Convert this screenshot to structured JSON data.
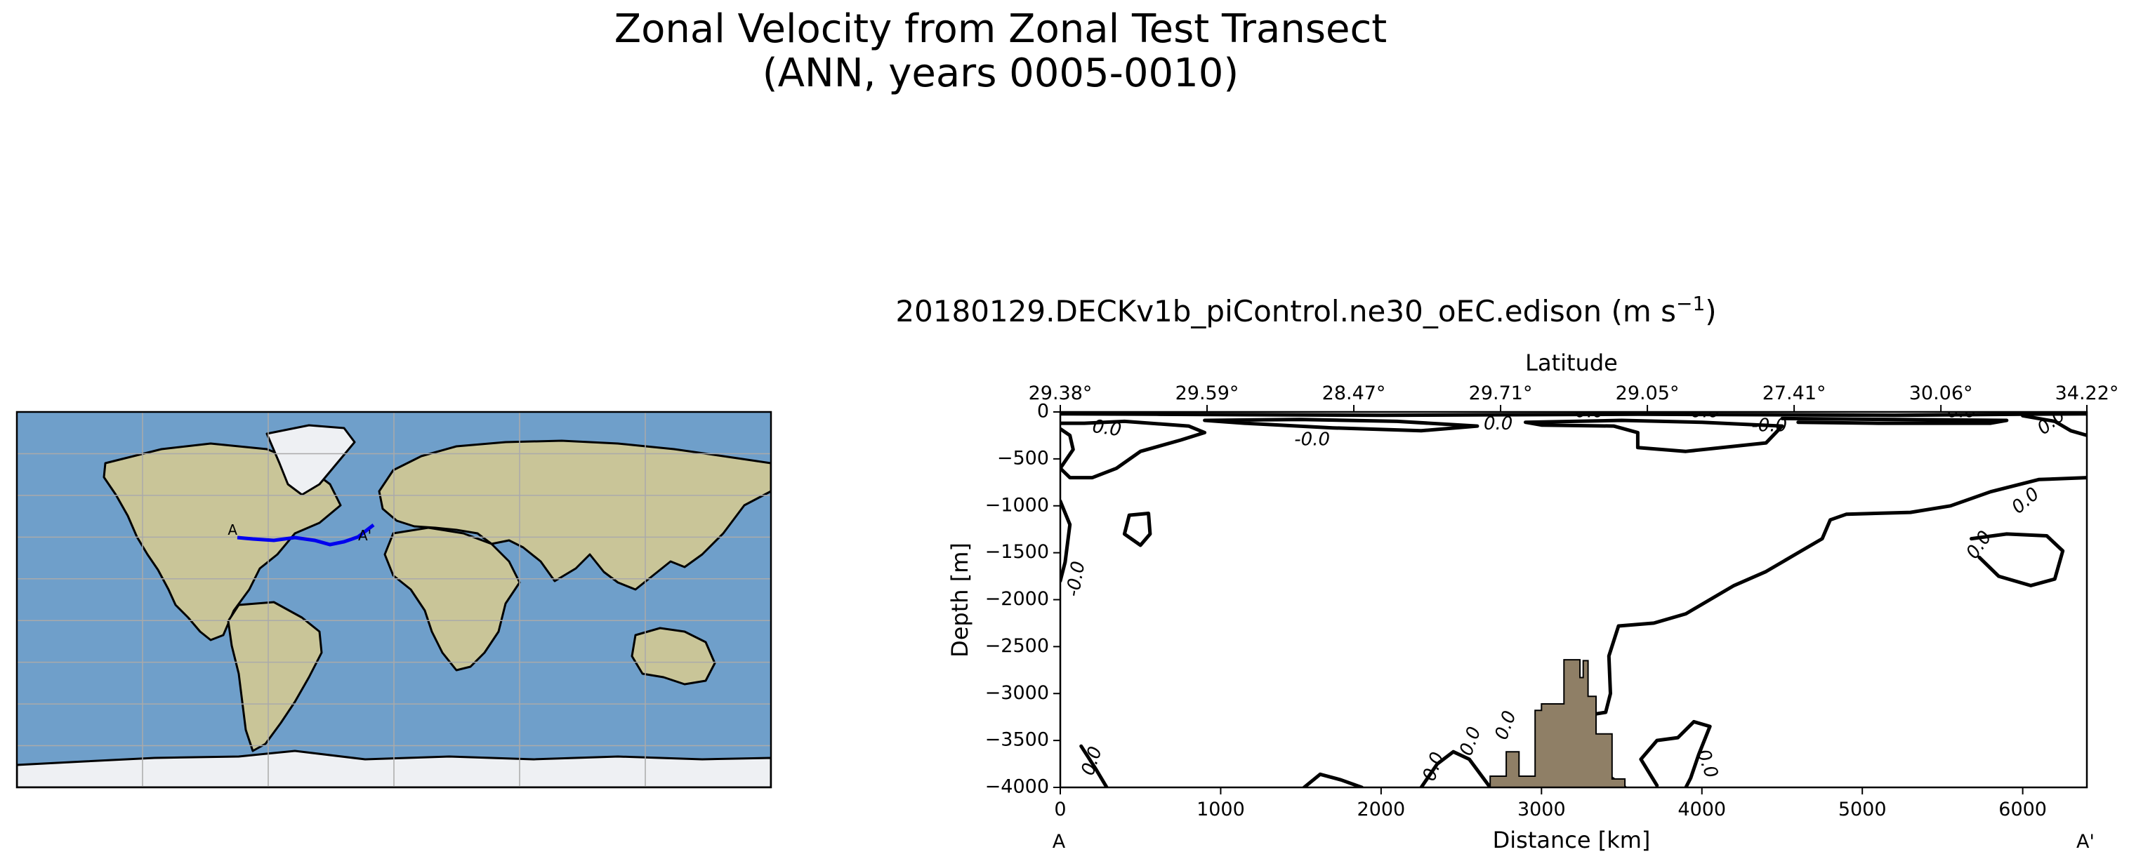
{
  "figure": {
    "title_line1": "Zonal Velocity from Zonal Test Transect",
    "title_line2": "(ANN, years 0005-0010)"
  },
  "colors": {
    "ocean": "#6f9fca",
    "land": "#c9c598",
    "ice": "#eef0f3",
    "transect": "#0000ee",
    "contour": "#000000",
    "seafloor": "#8f7f66",
    "grid": "#aaaaaa"
  },
  "map": {
    "label_start": "A",
    "label_end": "A'"
  },
  "chart_data": {
    "type": "line",
    "title_main": "20180129.DECKv1b_piControl.ne30_oEC.edison (m s",
    "title_sup": "−1",
    "title_close": ")",
    "xlabel": "Distance [km]",
    "ylabel": "Depth [m]",
    "top_label": "Latitude",
    "xlim": [
      0,
      6400
    ],
    "ylim": [
      -4000,
      0
    ],
    "x_ticks": [
      0,
      1000,
      2000,
      3000,
      4000,
      5000,
      6000
    ],
    "x_tick_labels": [
      "0",
      "1000",
      "2000",
      "3000",
      "4000",
      "5000",
      "6000"
    ],
    "y_ticks": [
      0,
      -500,
      -1000,
      -1500,
      -2000,
      -2500,
      -3000,
      -3500,
      -4000
    ],
    "y_tick_labels": [
      "0",
      "−500",
      "−1000",
      "−1500",
      "−2000",
      "−2500",
      "−3000",
      "−3500",
      "−4000"
    ],
    "top_ticks": [
      0,
      915,
      1830,
      2745,
      3660,
      4575,
      5490,
      6400
    ],
    "top_tick_labels": [
      "29.38°",
      "29.59°",
      "28.47°",
      "29.71°",
      "29.05°",
      "27.41°",
      "30.06°",
      "34.22°"
    ],
    "start_label": "A",
    "end_label": "A'",
    "contours": [
      [
        [
          0,
          -20
        ],
        [
          600,
          -25
        ],
        [
          1200,
          -30
        ],
        [
          2000,
          -35
        ],
        [
          2800,
          -30
        ],
        [
          3600,
          -25
        ],
        [
          4400,
          -30
        ],
        [
          5200,
          -35
        ],
        [
          6000,
          -25
        ],
        [
          6400,
          -20
        ]
      ],
      [
        [
          0,
          -120
        ],
        [
          150,
          -120
        ],
        [
          400,
          -100
        ],
        [
          800,
          -150
        ],
        [
          900,
          -220
        ],
        [
          750,
          -300
        ],
        [
          500,
          -420
        ],
        [
          350,
          -600
        ],
        [
          200,
          -700
        ],
        [
          60,
          -700
        ],
        [
          0,
          -600
        ],
        [
          80,
          -400
        ],
        [
          60,
          -250
        ],
        [
          0,
          -180
        ]
      ],
      [
        [
          900,
          -90
        ],
        [
          1500,
          -80
        ],
        [
          2100,
          -100
        ],
        [
          2600,
          -150
        ],
        [
          2250,
          -200
        ],
        [
          1700,
          -170
        ],
        [
          1150,
          -120
        ],
        [
          900,
          -90
        ]
      ],
      [
        [
          2900,
          -110
        ],
        [
          3500,
          -90
        ],
        [
          4000,
          -110
        ],
        [
          4500,
          -150
        ],
        [
          4400,
          -330
        ],
        [
          3900,
          -420
        ],
        [
          3600,
          -380
        ],
        [
          3600,
          -220
        ],
        [
          3450,
          -150
        ],
        [
          3000,
          -140
        ],
        [
          2900,
          -110
        ]
      ],
      [
        [
          4500,
          -70
        ],
        [
          5200,
          -80
        ],
        [
          5900,
          -90
        ],
        [
          5800,
          -120
        ],
        [
          5100,
          -120
        ],
        [
          4600,
          -110
        ]
      ],
      [
        [
          6000,
          -40
        ],
        [
          6200,
          -100
        ],
        [
          6300,
          -200
        ],
        [
          6400,
          -250
        ]
      ],
      [
        [
          430,
          -1100
        ],
        [
          550,
          -1080
        ],
        [
          560,
          -1300
        ],
        [
          500,
          -1420
        ],
        [
          400,
          -1300
        ],
        [
          430,
          -1100
        ]
      ],
      [
        [
          0,
          -950
        ],
        [
          60,
          -1200
        ],
        [
          30,
          -1600
        ],
        [
          0,
          -1800
        ]
      ],
      [
        [
          6400,
          -700
        ],
        [
          6100,
          -720
        ],
        [
          5800,
          -850
        ],
        [
          5550,
          -1000
        ],
        [
          5300,
          -1070
        ],
        [
          4900,
          -1090
        ],
        [
          4800,
          -1150
        ],
        [
          4750,
          -1350
        ],
        [
          4600,
          -1500
        ],
        [
          4400,
          -1700
        ],
        [
          4200,
          -1850
        ],
        [
          3900,
          -2150
        ],
        [
          3700,
          -2250
        ],
        [
          3480,
          -2280
        ],
        [
          3420,
          -2600
        ],
        [
          3430,
          -3000
        ],
        [
          3400,
          -3200
        ],
        [
          3220,
          -3250
        ],
        [
          3180,
          -3700
        ],
        [
          3350,
          -3800
        ],
        [
          3480,
          -3950
        ],
        [
          3520,
          -4000
        ]
      ],
      [
        [
          5680,
          -1350
        ],
        [
          5900,
          -1300
        ],
        [
          6150,
          -1320
        ],
        [
          6250,
          -1480
        ],
        [
          6200,
          -1780
        ],
        [
          6050,
          -1850
        ],
        [
          5850,
          -1750
        ],
        [
          5730,
          -1550
        ]
      ],
      [
        [
          3720,
          -3980
        ],
        [
          3620,
          -3700
        ],
        [
          3720,
          -3500
        ],
        [
          3850,
          -3470
        ],
        [
          3950,
          -3300
        ],
        [
          4050,
          -3350
        ],
        [
          3980,
          -3650
        ],
        [
          3930,
          -3900
        ],
        [
          3900,
          -4000
        ]
      ],
      [
        [
          2250,
          -4000
        ],
        [
          2350,
          -3750
        ],
        [
          2450,
          -3620
        ],
        [
          2550,
          -3700
        ],
        [
          2680,
          -4000
        ]
      ],
      [
        [
          1520,
          -4000
        ],
        [
          1620,
          -3860
        ],
        [
          1750,
          -3920
        ],
        [
          1880,
          -4000
        ]
      ],
      [
        [
          130,
          -3560
        ],
        [
          220,
          -3800
        ],
        [
          290,
          -4000
        ]
      ]
    ],
    "contour_labels": [
      {
        "x": 290,
        "y": -180,
        "text": "0.0",
        "rotate": 8
      },
      {
        "x": 1570,
        "y": -300,
        "text": "-0.0",
        "rotate": 0
      },
      {
        "x": 2730,
        "y": -130,
        "text": "0.0",
        "rotate": 0
      },
      {
        "x": 3300,
        "y": 0,
        "text": "0.0",
        "rotate": 0
      },
      {
        "x": 4420,
        "y": -150,
        "text": "-0.0",
        "rotate": 0
      },
      {
        "x": 4000,
        "y": 0,
        "text": "-0.0",
        "rotate": 0
      },
      {
        "x": 5620,
        "y": 0,
        "text": "0.0",
        "rotate": 0
      },
      {
        "x": 6180,
        "y": -110,
        "text": "0.0",
        "rotate": -38
      },
      {
        "x": 6020,
        "y": -950,
        "text": "0.0",
        "rotate": -40
      },
      {
        "x": 5730,
        "y": -1420,
        "text": "0.0",
        "rotate": -55
      },
      {
        "x": 100,
        "y": -1780,
        "text": "-0.0",
        "rotate": -80
      },
      {
        "x": 2780,
        "y": -3340,
        "text": "0.0",
        "rotate": -70
      },
      {
        "x": 2560,
        "y": -3510,
        "text": "0.0",
        "rotate": -70
      },
      {
        "x": 2330,
        "y": -3780,
        "text": "0.0",
        "rotate": -70
      },
      {
        "x": 4030,
        "y": -3750,
        "text": "0.0",
        "rotate": 70
      },
      {
        "x": 200,
        "y": -3720,
        "text": "0.0",
        "rotate": -72
      }
    ],
    "seafloor": [
      [
        2680,
        -4000
      ],
      [
        2680,
        -3880
      ],
      [
        2780,
        -3880
      ],
      [
        2780,
        -3620
      ],
      [
        2860,
        -3620
      ],
      [
        2860,
        -3880
      ],
      [
        2960,
        -3880
      ],
      [
        2960,
        -3180
      ],
      [
        3000,
        -3180
      ],
      [
        3000,
        -3110
      ],
      [
        3140,
        -3110
      ],
      [
        3140,
        -2640
      ],
      [
        3240,
        -2640
      ],
      [
        3240,
        -2830
      ],
      [
        3260,
        -2830
      ],
      [
        3260,
        -2650
      ],
      [
        3290,
        -2650
      ],
      [
        3290,
        -3030
      ],
      [
        3340,
        -3030
      ],
      [
        3340,
        -3430
      ],
      [
        3440,
        -3430
      ],
      [
        3440,
        -3910
      ],
      [
        3520,
        -3910
      ],
      [
        3520,
        -4000
      ]
    ]
  }
}
